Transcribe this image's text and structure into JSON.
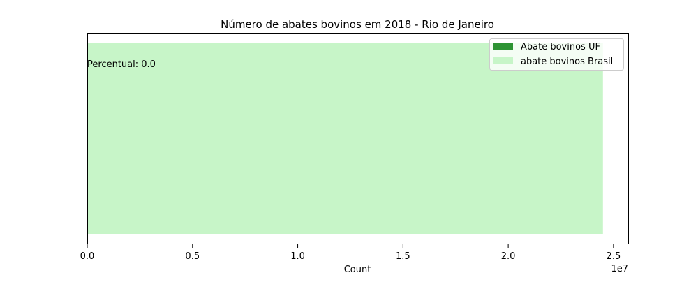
{
  "chart_data": {
    "type": "bar",
    "orientation": "horizontal",
    "title": "Número de abates bovinos em 2018 - Rio de Janeiro",
    "xlabel": "Count",
    "ylabel": "",
    "x_scale_label": "1e7",
    "xlim": [
      0,
      25700000
    ],
    "x_ticks": [
      0,
      5000000,
      10000000,
      15000000,
      20000000,
      25000000
    ],
    "x_tick_labels": [
      "0.0",
      "0.5",
      "1.0",
      "1.5",
      "2.0",
      "2.5"
    ],
    "series": [
      {
        "name": "Abate bovinos UF",
        "value": 0,
        "color": "#2e9334"
      },
      {
        "name": "abate bovinos Brasil",
        "value": 24500000,
        "color": "#c7f5c8"
      }
    ],
    "annotation": "Percentual: 0.0",
    "legend_position": "upper right",
    "grid": false
  }
}
